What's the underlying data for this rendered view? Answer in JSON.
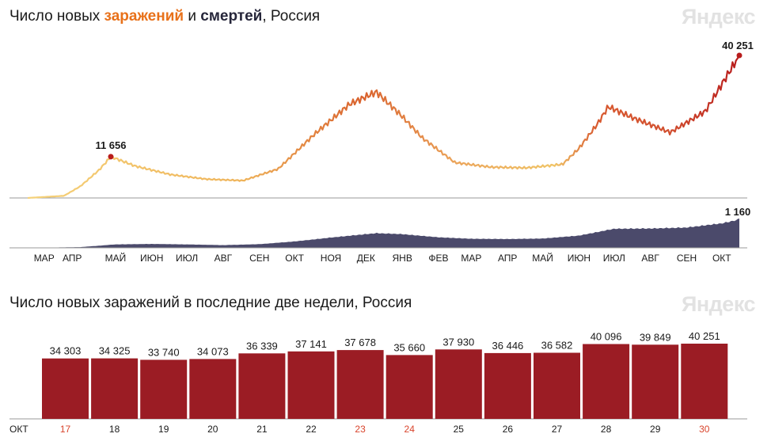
{
  "chart1": {
    "title_parts": [
      "Число новых ",
      "заражений",
      " и ",
      "смертей",
      ", Россия"
    ],
    "watermark": "Яндекс",
    "month_labels": [
      "МАР",
      "АПР",
      "МАЙ",
      "ИЮН",
      "ИЮЛ",
      "АВГ",
      "СЕН",
      "ОКТ",
      "НОЯ",
      "ДЕК",
      "ЯНВ",
      "ФЕВ",
      "МАР",
      "АПР",
      "МАЙ",
      "ИЮН",
      "ИЮЛ",
      "АВГ",
      "СЕН",
      "ОКТ"
    ],
    "annotations": {
      "first_peak": "11 656",
      "last_cases": "40 251",
      "last_deaths": "1 160"
    }
  },
  "chart2": {
    "title": "Число новых заражений в последние две недели, Россия",
    "watermark": "Яндекс",
    "month_label": "ОКТ"
  },
  "chart_data": [
    {
      "type": "line",
      "title": "Число новых заражений и смертей, Россия",
      "x_start": "2020-03",
      "x_end": "2021-10-30",
      "series": [
        {
          "name": "заражений",
          "points": [
            [
              "2020-03-01",
              0
            ],
            [
              "2020-04-01",
              600
            ],
            [
              "2020-04-15",
              3300
            ],
            [
              "2020-05-01",
              7900
            ],
            [
              "2020-05-11",
              11656
            ],
            [
              "2020-06-01",
              9000
            ],
            [
              "2020-07-01",
              6600
            ],
            [
              "2020-08-01",
              5300
            ],
            [
              "2020-09-01",
              4900
            ],
            [
              "2020-10-01",
              8200
            ],
            [
              "2020-11-01",
              18000
            ],
            [
              "2020-12-01",
              26500
            ],
            [
              "2020-12-24",
              29935
            ],
            [
              "2021-01-15",
              23000
            ],
            [
              "2021-02-01",
              17000
            ],
            [
              "2021-03-01",
              10000
            ],
            [
              "2021-04-01",
              8700
            ],
            [
              "2021-05-01",
              8500
            ],
            [
              "2021-06-01",
              9500
            ],
            [
              "2021-06-15",
              14000
            ],
            [
              "2021-07-01",
              21000
            ],
            [
              "2021-07-10",
              25766
            ],
            [
              "2021-08-01",
              22500
            ],
            [
              "2021-09-01",
              18500
            ],
            [
              "2021-10-01",
              24500
            ],
            [
              "2021-10-30",
              40251
            ]
          ]
        },
        {
          "name": "смертей",
          "points": [
            [
              "2020-03-01",
              0
            ],
            [
              "2020-04-15",
              30
            ],
            [
              "2020-05-15",
              140
            ],
            [
              "2020-06-15",
              160
            ],
            [
              "2020-07-15",
              140
            ],
            [
              "2020-08-15",
              110
            ],
            [
              "2020-09-15",
              150
            ],
            [
              "2020-10-15",
              260
            ],
            [
              "2020-11-15",
              420
            ],
            [
              "2020-12-24",
              600
            ],
            [
              "2021-01-15",
              560
            ],
            [
              "2021-02-15",
              430
            ],
            [
              "2021-03-15",
              370
            ],
            [
              "2021-04-15",
              360
            ],
            [
              "2021-05-15",
              380
            ],
            [
              "2021-06-15",
              500
            ],
            [
              "2021-07-15",
              780
            ],
            [
              "2021-08-15",
              790
            ],
            [
              "2021-09-15",
              830
            ],
            [
              "2021-10-15",
              1000
            ],
            [
              "2021-10-30",
              1160
            ]
          ]
        }
      ]
    },
    {
      "type": "bar",
      "title": "Число новых заражений в последние две недели, Россия",
      "categories": [
        "17",
        "18",
        "19",
        "20",
        "21",
        "22",
        "23",
        "24",
        "25",
        "26",
        "27",
        "28",
        "29",
        "30"
      ],
      "values": [
        34303,
        34325,
        33740,
        34073,
        36339,
        37141,
        37678,
        35660,
        37930,
        36446,
        36582,
        40096,
        39849,
        40251
      ],
      "value_labels": [
        "34 303",
        "34 325",
        "33 740",
        "34 073",
        "36 339",
        "37 141",
        "37 678",
        "35 660",
        "37 930",
        "36 446",
        "36 582",
        "40 096",
        "39 849",
        "40 251"
      ],
      "weekend": [
        true,
        false,
        false,
        false,
        false,
        false,
        true,
        true,
        false,
        false,
        false,
        false,
        false,
        true
      ],
      "colors": {
        "bar": "#9b1c24",
        "weekend_label": "#d9442c",
        "weekday_label": "#1a1a1a"
      }
    }
  ],
  "colors": {
    "cases_start": "#f2c56a",
    "cases_end": "#b81c1c",
    "deaths": "#4b4a6b",
    "baseline": "#9a9a9a",
    "dot": "#b81c1c"
  }
}
